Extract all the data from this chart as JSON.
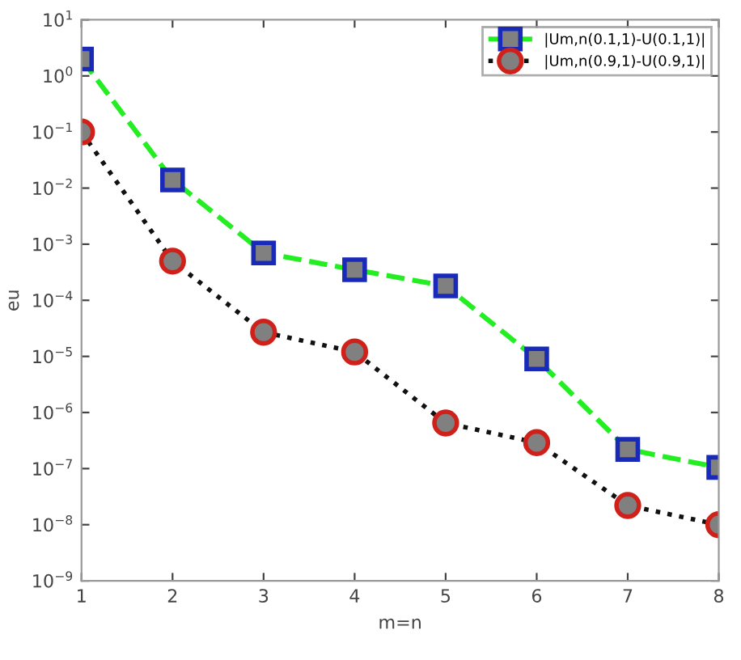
{
  "chart_data": {
    "type": "line",
    "xlabel": "m=n",
    "ylabel": "eu",
    "log": "y",
    "x": [
      1,
      2,
      3,
      4,
      5,
      6,
      7,
      8
    ],
    "xlim": [
      1,
      8
    ],
    "xticks": [
      1,
      2,
      3,
      4,
      5,
      6,
      7,
      8
    ],
    "ylim": [
      1e-09,
      10
    ],
    "yticks": [
      {
        "value": 1e-09,
        "label": "10$^{−9}$"
      },
      {
        "value": 1e-08,
        "label": "10$^{−8}$"
      },
      {
        "value": 1e-07,
        "label": "10$^{−7}$"
      },
      {
        "value": 1e-06,
        "label": "10$^{−6}$"
      },
      {
        "value": 1e-05,
        "label": "10$^{−5}$"
      },
      {
        "value": 0.0001,
        "label": "10$^{−4}$"
      },
      {
        "value": 0.001,
        "label": "10$^{−3}$"
      },
      {
        "value": 0.01,
        "label": "10$^{−2}$"
      },
      {
        "value": 0.1,
        "label": "10$^{−1}$"
      },
      {
        "value": 1,
        "label": "10$^{0}$"
      },
      {
        "value": 10,
        "label": "10$^{1}$"
      }
    ],
    "grid": false,
    "legend": "top right",
    "series": [
      {
        "name": "|Um,n(0.1,1)-U(0.1,1)|",
        "color": "#22ee22",
        "marker": "square",
        "line_style": "dashed",
        "values": [
          2,
          0.014,
          0.0007,
          0.00035,
          0.00018,
          9e-06,
          2.2e-07,
          1.05e-07
        ]
      },
      {
        "name": "|Um,n(0.9,1)-U(0.9,1)|",
        "color": "#111111",
        "marker": "circle",
        "line_style": "dotted",
        "values": [
          0.1,
          0.0005,
          2.7e-05,
          1.2e-05,
          6.5e-07,
          2.9e-07,
          2.2e-08,
          1e-08
        ]
      }
    ]
  }
}
